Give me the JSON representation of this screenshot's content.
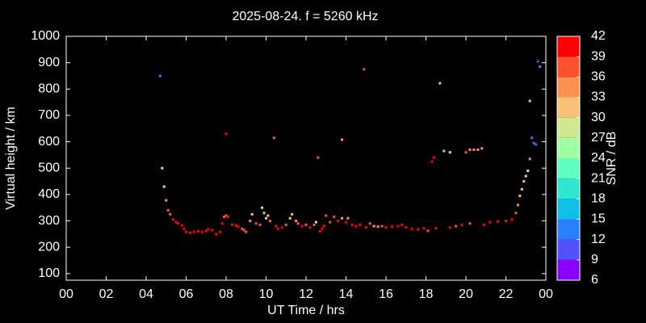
{
  "chart_data": {
    "type": "scatter",
    "title": "2025-08-24. f = 5260 kHz",
    "xlabel": "UT Time / hrs",
    "ylabel": "Virtual height / km",
    "xlim": [
      0,
      24
    ],
    "xticks": [
      {
        "value": 0,
        "label": "00"
      },
      {
        "value": 2,
        "label": "02"
      },
      {
        "value": 4,
        "label": "04"
      },
      {
        "value": 6,
        "label": "06"
      },
      {
        "value": 8,
        "label": "08"
      },
      10,
      12,
      14,
      16,
      18,
      20,
      22,
      {
        "value": 24,
        "label": "00"
      }
    ],
    "ylim": [
      75,
      1000
    ],
    "yticks": [
      100,
      200,
      300,
      400,
      500,
      600,
      700,
      800,
      900,
      1000
    ],
    "colorbar": {
      "label": "SNR / dB",
      "lim": [
        6,
        42
      ],
      "ticks": [
        6,
        9,
        12,
        15,
        18,
        21,
        24,
        27,
        30,
        33,
        36,
        39,
        42
      ],
      "colors": [
        "#8a00ff",
        "#5050ff",
        "#2a7fff",
        "#10c0e8",
        "#30e8d0",
        "#60ffc0",
        "#a0ffa0",
        "#d0e890",
        "#f8c078",
        "#ff9050",
        "#ff5030",
        "#ff0000"
      ]
    },
    "series": [
      {
        "x": [
          4.7,
          4.8,
          4.9,
          5.0,
          5.1,
          5.2,
          5.35,
          5.5,
          5.6,
          5.8,
          5.9,
          6.0,
          6.2,
          6.4,
          6.6,
          6.8,
          7.0,
          7.1,
          7.3,
          7.5,
          7.7,
          7.8,
          7.9,
          8.0,
          8.1,
          8.0,
          8.3,
          8.5,
          8.6,
          8.8,
          8.9,
          9.0,
          9.2,
          9.3,
          9.5,
          9.7,
          9.8,
          9.9,
          10.0,
          10.1,
          10.2,
          10.4,
          10.5,
          10.6,
          10.8,
          11.0,
          11.2,
          11.3,
          11.5,
          11.6,
          11.8,
          12.0,
          12.2,
          12.4,
          12.5,
          12.6,
          12.7,
          12.8,
          12.9,
          13.0,
          13.2,
          13.4,
          13.6,
          13.8,
          13.8,
          14.0,
          14.1,
          14.3,
          14.5,
          14.7,
          14.9,
          15.0,
          15.2,
          15.4,
          15.6,
          15.8,
          16.0,
          16.3,
          16.6,
          16.8,
          17.0,
          17.3,
          17.6,
          17.9,
          18.1,
          18.3,
          18.4,
          18.5,
          18.7,
          18.9,
          19.2,
          19.2,
          19.5,
          19.8,
          20.0,
          20.2,
          20.2,
          20.4,
          20.6,
          20.8,
          20.9,
          21.2,
          21.6,
          22.0,
          22.3,
          22.5,
          22.6,
          22.7,
          22.8,
          22.9,
          23.0,
          23.1,
          23.2,
          23.2,
          23.3,
          23.4,
          23.5,
          23.6,
          23.7
        ],
        "values": [
          850,
          500,
          430,
          378,
          340,
          325,
          305,
          295,
          290,
          283,
          270,
          258,
          255,
          258,
          260,
          258,
          262,
          268,
          265,
          250,
          258,
          290,
          315,
          320,
          315,
          630,
          285,
          283,
          278,
          270,
          265,
          258,
          300,
          325,
          290,
          285,
          350,
          330,
          310,
          320,
          300,
          615,
          280,
          270,
          275,
          285,
          310,
          325,
          300,
          290,
          280,
          285,
          275,
          285,
          295,
          540,
          260,
          270,
          280,
          320,
          295,
          315,
          300,
          310,
          608,
          295,
          310,
          285,
          280,
          285,
          875,
          275,
          290,
          280,
          278,
          280,
          275,
          278,
          280,
          285,
          275,
          270,
          268,
          272,
          262,
          525,
          540,
          272,
          822,
          565,
          275,
          560,
          280,
          285,
          560,
          290,
          570,
          570,
          570,
          575,
          285,
          295,
          298,
          300,
          305,
          330,
          360,
          395,
          420,
          450,
          470,
          490,
          535,
          755,
          615,
          595,
          590,
          905,
          885
        ],
        "snr": [
          12,
          24,
          27,
          33,
          36,
          36,
          39,
          39,
          39,
          39,
          39,
          42,
          42,
          42,
          42,
          42,
          42,
          39,
          39,
          42,
          42,
          39,
          36,
          36,
          39,
          39,
          39,
          39,
          39,
          36,
          36,
          36,
          33,
          30,
          36,
          36,
          24,
          30,
          30,
          30,
          36,
          36,
          39,
          39,
          39,
          36,
          30,
          30,
          33,
          36,
          39,
          36,
          39,
          36,
          27,
          36,
          39,
          39,
          39,
          36,
          36,
          36,
          39,
          33,
          33,
          39,
          33,
          39,
          39,
          39,
          36,
          39,
          36,
          33,
          33,
          36,
          39,
          39,
          39,
          39,
          39,
          39,
          39,
          39,
          36,
          39,
          39,
          39,
          30,
          21,
          39,
          27,
          36,
          39,
          36,
          36,
          33,
          33,
          33,
          33,
          39,
          39,
          39,
          39,
          39,
          36,
          33,
          30,
          30,
          30,
          27,
          27,
          33,
          21,
          12,
          12,
          9,
          9,
          12
        ]
      }
    ]
  }
}
